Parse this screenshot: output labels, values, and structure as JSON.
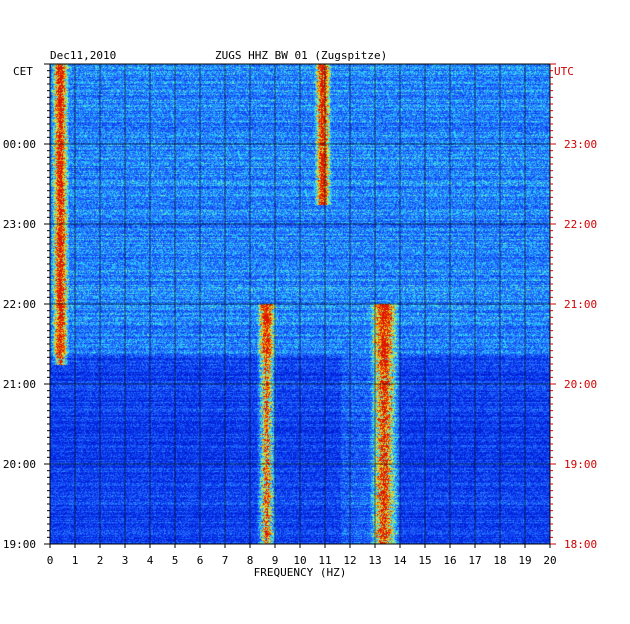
{
  "header": {
    "date": "Dec11,2010",
    "station": "ZUGS HHZ BW 01 (Zugspitze)",
    "left_tz": "CET",
    "right_tz": "UTC"
  },
  "chart_data": {
    "type": "heatmap",
    "title": "ZUGS HHZ BW 01 (Zugspitze)",
    "xlabel": "FREQUENCY (HZ)",
    "xlim": [
      0,
      20
    ],
    "x_ticks": [
      "0",
      "1",
      "2",
      "3",
      "4",
      "5",
      "6",
      "7",
      "8",
      "9",
      "10",
      "11",
      "12",
      "13",
      "14",
      "15",
      "16",
      "17",
      "18",
      "19",
      "20"
    ],
    "y_ticks_left": [
      "19:00",
      "20:00",
      "21:00",
      "22:00",
      "23:00",
      "00:00"
    ],
    "y_ticks_right": [
      "18:00",
      "19:00",
      "20:00",
      "21:00",
      "22:00",
      "23:00"
    ],
    "time_range_cet": [
      "19:00",
      "01:00"
    ],
    "grid": true,
    "colors": {
      "low": "#0000a0",
      "mid": "#2a6bff",
      "high": "#30e0ff",
      "peak": "#ff2000",
      "right_axis": "#d00000"
    },
    "features": [
      {
        "name": "low-frequency band",
        "freq_hz": [
          0.2,
          0.6
        ],
        "time_cet": [
          "21:15",
          "01:00"
        ]
      },
      {
        "name": "8.6 Hz band",
        "freq_hz": [
          8.4,
          8.9
        ],
        "time_cet": [
          "19:00",
          "22:00"
        ]
      },
      {
        "name": "10.9 Hz band",
        "freq_hz": [
          10.7,
          11.1
        ],
        "time_cet": [
          "23:15",
          "01:00"
        ]
      },
      {
        "name": "13.3 Hz band",
        "freq_hz": [
          12.9,
          13.8
        ],
        "time_cet": [
          "19:00",
          "22:00"
        ]
      }
    ]
  }
}
